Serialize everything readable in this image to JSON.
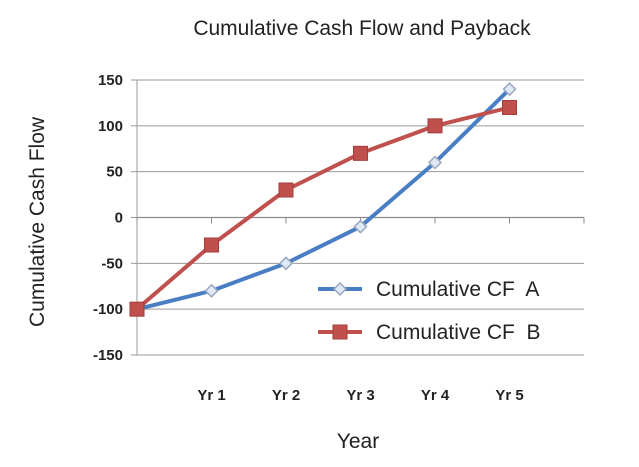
{
  "chart_data": {
    "type": "line",
    "title": "Cumulative Cash Flow and Payback",
    "xlabel": "Year",
    "ylabel": "Cumulative Cash Flow",
    "categories": [
      "",
      "Yr 1",
      "Yr 2",
      "Yr 3",
      "Yr 4",
      "Yr 5"
    ],
    "ylim": [
      -150,
      150
    ],
    "yticks": [
      150,
      100,
      50,
      0,
      -50,
      -100,
      -150
    ],
    "grid": true,
    "legend_position": "bottom-right",
    "series": [
      {
        "name": "Cumulative CF  A",
        "values": [
          -100,
          -80,
          -50,
          -10,
          60,
          140
        ],
        "color": "#4a7ec4",
        "marker": "diamond"
      },
      {
        "name": "Cumulative CF  B",
        "values": [
          -100,
          -30,
          30,
          70,
          100,
          120
        ],
        "color": "#c0504d",
        "marker": "square"
      }
    ]
  }
}
